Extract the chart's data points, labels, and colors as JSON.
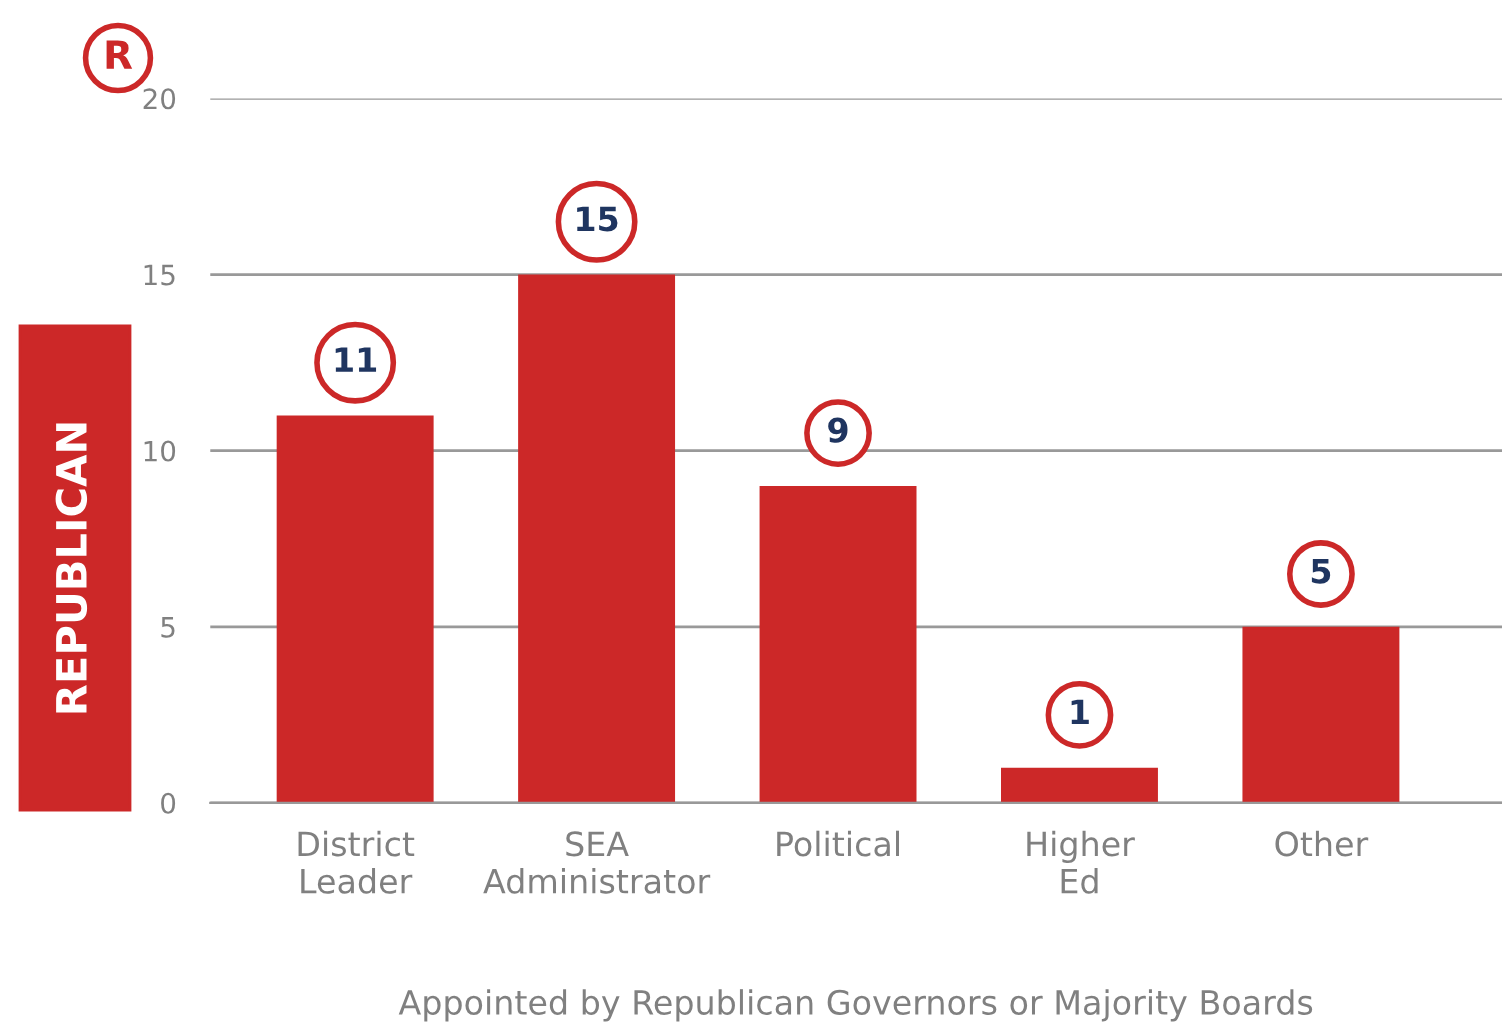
{
  "chart_data": {
    "type": "bar",
    "categories": [
      "District\nLeader",
      "SEA\nAdministrator",
      "Political",
      "Higher\nEd",
      "Other"
    ],
    "values": [
      11,
      15,
      9,
      1,
      5
    ],
    "color": "#cc2828",
    "ylabel": "REPUBLICAN",
    "xlabel": "Appointed by Republican Governors or Majority Boards",
    "annotations": [
      "R"
    ],
    "ylim": [
      0,
      20
    ],
    "yticks": [
      0,
      5,
      10,
      15,
      20
    ],
    "grid": "y",
    "data_labels": true
  }
}
